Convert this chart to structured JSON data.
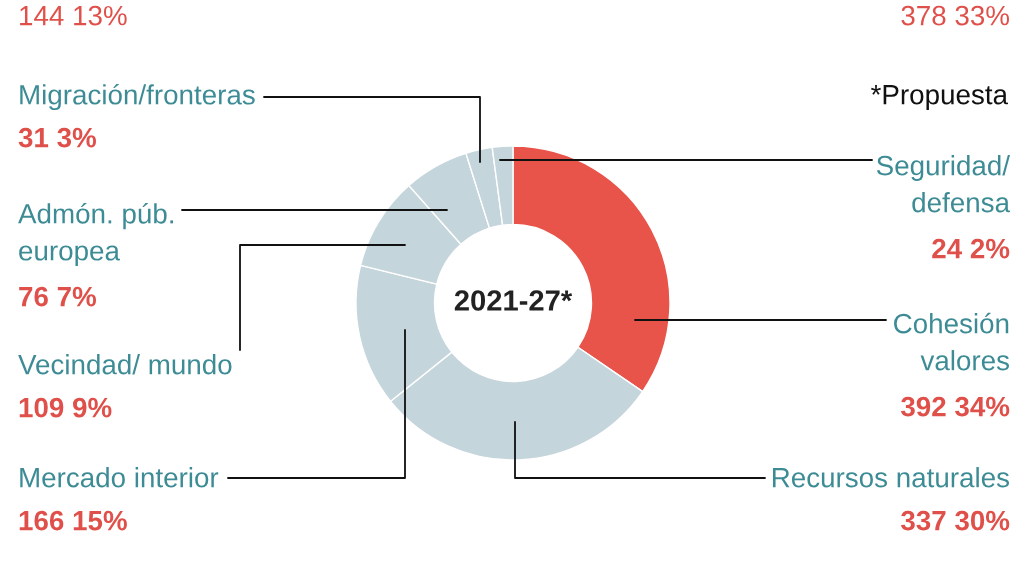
{
  "chart_data": {
    "type": "donut",
    "title": "2021-27*",
    "categories": [
      "Cohesión\nvalores",
      "Recursos naturales",
      "Mercado interior",
      "Vecindad/ mundo",
      "Admón. púb.\neuropea",
      "Migración/fronteras",
      "Seguridad/\ndefensa"
    ],
    "values": [
      392,
      337,
      166,
      109,
      76,
      31,
      24
    ],
    "colors": [
      "#e8534a",
      "#c5d5dc",
      "#c5d5dc",
      "#c5d5dc",
      "#c5d5dc",
      "#c5d5dc",
      "#c5d5dc"
    ],
    "value_labels": [
      "392 34%",
      "337 30%",
      "166 15%",
      "109 9%",
      "76 7%",
      "31 3%",
      "24 2%"
    ],
    "annotations": [
      "*Propuesta",
      "144 13%",
      "378 33%"
    ]
  }
}
